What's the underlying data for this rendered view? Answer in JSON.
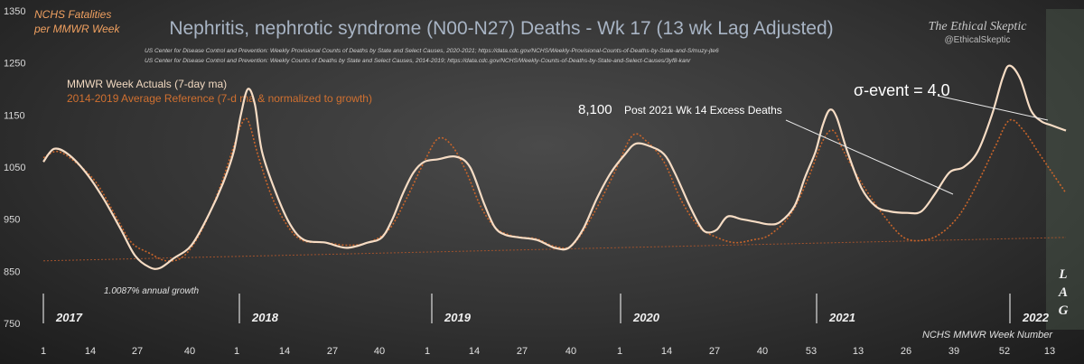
{
  "header": {
    "title": "Nephritis, nephrotic syndrome (N00-N27) Deaths - Wk 17 (13 wk Lag Adjusted)",
    "ylabel_line1": "NCHS Fatalities",
    "ylabel_line2": "per MMWR Week",
    "brand": "The Ethical Skeptic",
    "handle": "@EthicalSkeptic",
    "source_line1": "US Center for Disease Control and Prevention: Weekly  Provisional Counts of Deaths by State and Select Causes, 2020-2021; https://data.cdc.gov/NCHS/Weekly-Provisional-Counts-of-Deaths-by-State-and-S/muzy-jte6",
    "source_line2": "US Center for Disease Control and Prevention: Weekly  Counts of Deaths by State and Select Causes, 2014-2019; https://data.cdc.gov/NCHS/Weekly-Counts-of-Deaths-by-State-and-Select-Causes/3yf8-kanr"
  },
  "colors": {
    "actual": "#f6dcc4",
    "reference": "#c8642a",
    "trend": "#a0522d",
    "annotation": "#ffffff",
    "title": "#a8b4c4"
  },
  "chart_data": {
    "type": "line",
    "xlabel": "NCHS  MMWR  Week Number",
    "ylim": [
      750,
      1350
    ],
    "yticks": [
      750,
      850,
      950,
      1050,
      1150,
      1250,
      1350
    ],
    "week_labels": [
      "1",
      "14",
      "27",
      "40",
      "1",
      "14",
      "27",
      "40",
      "1",
      "14",
      "27",
      "40",
      "1",
      "14",
      "27",
      "40",
      "53",
      "13",
      "26",
      "39",
      "52",
      "13"
    ],
    "year_labels": [
      "2017",
      "2018",
      "2019",
      "2020",
      "2021",
      "2022"
    ],
    "series": [
      {
        "name": "MMWR Week Actuals (7-day ma)",
        "points": [
          [
            0,
            1060
          ],
          [
            3,
            1085
          ],
          [
            7,
            1075
          ],
          [
            12,
            1040
          ],
          [
            17,
            990
          ],
          [
            22,
            930
          ],
          [
            26,
            880
          ],
          [
            30,
            858
          ],
          [
            33,
            856
          ],
          [
            37,
            875
          ],
          [
            42,
            900
          ],
          [
            47,
            960
          ],
          [
            51,
            1020
          ],
          [
            54,
            1080
          ],
          [
            56,
            1150
          ],
          [
            58,
            1200
          ],
          [
            60,
            1170
          ],
          [
            62,
            1080
          ],
          [
            66,
            1000
          ],
          [
            70,
            940
          ],
          [
            74,
            910
          ],
          [
            80,
            905
          ],
          [
            86,
            895
          ],
          [
            92,
            905
          ],
          [
            96,
            915
          ],
          [
            99,
            950
          ],
          [
            102,
            1000
          ],
          [
            105,
            1040
          ],
          [
            108,
            1060
          ],
          [
            112,
            1065
          ],
          [
            117,
            1070
          ],
          [
            121,
            1050
          ],
          [
            125,
            980
          ],
          [
            128,
            935
          ],
          [
            131,
            920
          ],
          [
            135,
            915
          ],
          [
            140,
            910
          ],
          [
            145,
            895
          ],
          [
            149,
            895
          ],
          [
            153,
            930
          ],
          [
            157,
            990
          ],
          [
            161,
            1040
          ],
          [
            165,
            1075
          ],
          [
            168,
            1095
          ],
          [
            172,
            1090
          ],
          [
            176,
            1075
          ],
          [
            179,
            1040
          ],
          [
            183,
            980
          ],
          [
            186,
            940
          ],
          [
            188,
            925
          ],
          [
            191,
            930
          ],
          [
            194,
            955
          ],
          [
            198,
            950
          ],
          [
            202,
            945
          ],
          [
            206,
            940
          ],
          [
            209,
            945
          ],
          [
            213,
            975
          ],
          [
            216,
            1030
          ],
          [
            219,
            1080
          ],
          [
            221,
            1130
          ],
          [
            223,
            1160
          ],
          [
            225,
            1145
          ],
          [
            228,
            1080
          ],
          [
            232,
            1010
          ],
          [
            236,
            975
          ],
          [
            240,
            965
          ],
          [
            245,
            962
          ],
          [
            249,
            965
          ],
          [
            253,
            1000
          ],
          [
            257,
            1040
          ],
          [
            261,
            1050
          ],
          [
            265,
            1080
          ],
          [
            269,
            1150
          ],
          [
            272,
            1220
          ],
          [
            274,
            1245
          ],
          [
            277,
            1220
          ],
          [
            280,
            1160
          ],
          [
            283,
            1138
          ],
          [
            286,
            1130
          ],
          [
            290,
            1120
          ]
        ]
      },
      {
        "name": "2014-2019  Average Reference (7-d ma & normalized to growth)",
        "points": [
          [
            0,
            1068
          ],
          [
            4,
            1080
          ],
          [
            9,
            1060
          ],
          [
            15,
            1020
          ],
          [
            21,
            950
          ],
          [
            25,
            905
          ],
          [
            30,
            885
          ],
          [
            35,
            870
          ],
          [
            40,
            880
          ],
          [
            45,
            930
          ],
          [
            50,
            1010
          ],
          [
            54,
            1090
          ],
          [
            56,
            1130
          ],
          [
            58,
            1140
          ],
          [
            61,
            1070
          ],
          [
            65,
            990
          ],
          [
            70,
            930
          ],
          [
            74,
            908
          ],
          [
            80,
            905
          ],
          [
            86,
            900
          ],
          [
            92,
            905
          ],
          [
            98,
            930
          ],
          [
            103,
            990
          ],
          [
            108,
            1060
          ],
          [
            112,
            1105
          ],
          [
            116,
            1090
          ],
          [
            120,
            1040
          ],
          [
            124,
            975
          ],
          [
            128,
            935
          ],
          [
            132,
            920
          ],
          [
            136,
            915
          ],
          [
            140,
            912
          ],
          [
            145,
            898
          ],
          [
            150,
            900
          ],
          [
            156,
            960
          ],
          [
            162,
            1040
          ],
          [
            167,
            1110
          ],
          [
            171,
            1100
          ],
          [
            176,
            1060
          ],
          [
            181,
            985
          ],
          [
            186,
            935
          ],
          [
            191,
            915
          ],
          [
            196,
            905
          ],
          [
            201,
            910
          ],
          [
            206,
            920
          ],
          [
            212,
            960
          ],
          [
            217,
            1030
          ],
          [
            221,
            1100
          ],
          [
            224,
            1120
          ],
          [
            227,
            1080
          ],
          [
            232,
            1020
          ],
          [
            238,
            960
          ],
          [
            244,
            915
          ],
          [
            250,
            910
          ],
          [
            255,
            925
          ],
          [
            260,
            960
          ],
          [
            265,
            1020
          ],
          [
            270,
            1090
          ],
          [
            274,
            1140
          ],
          [
            278,
            1120
          ],
          [
            282,
            1080
          ],
          [
            286,
            1040
          ],
          [
            290,
            1000
          ]
        ]
      }
    ],
    "trend": {
      "name": "1.0087% annual growth",
      "start": 870,
      "end": 915
    },
    "annotations": {
      "excess_value": "8,100",
      "excess_text": "Post 2021 Wk 14 Excess Deaths",
      "sigma": "σ-event = 4.0",
      "lag": [
        "L",
        "A",
        "G"
      ]
    }
  }
}
